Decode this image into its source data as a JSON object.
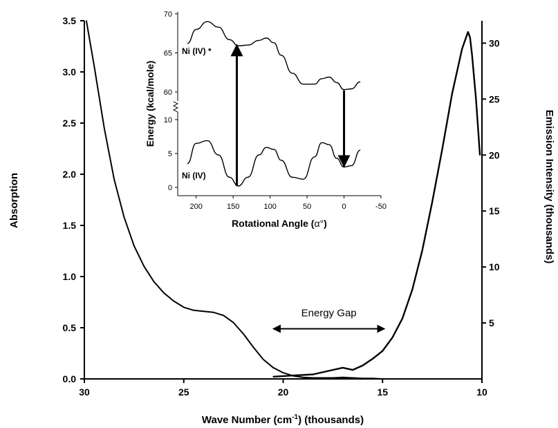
{
  "chart_data": [
    {
      "type": "line",
      "xlabel_main": "Wave Number (cm",
      "xlabel_sup": "-1",
      "xlabel_tail": ") (thousands)",
      "ylabel_left": "Absorption",
      "ylabel_right": "Emission Intensity (thousands)",
      "xlim": [
        30,
        10
      ],
      "ylim_left": [
        0,
        3.5
      ],
      "ylim_right": [
        0,
        32
      ],
      "x_ticks": [
        "30",
        "25",
        "20",
        "15",
        "10"
      ],
      "y_left_ticks": [
        "0.0",
        "0.5",
        "1.0",
        "1.5",
        "2.0",
        "2.5",
        "3.0",
        "3.5"
      ],
      "y_right_ticks": [
        "5",
        "10",
        "15",
        "20",
        "25",
        "30"
      ],
      "grid": false,
      "series": [
        {
          "axis": "left",
          "x": [
            29.9,
            29.5,
            29.0,
            28.5,
            28.0,
            27.5,
            27.0,
            26.5,
            26.0,
            25.5,
            25.0,
            24.5,
            24.0,
            23.5,
            23.0,
            22.5,
            22.0,
            21.5,
            21.0,
            20.5,
            20.0,
            19.5,
            19.0,
            18.5,
            18.0,
            17.5,
            17.0,
            16.5,
            16.0,
            15.5,
            15.0
          ],
          "values": [
            3.5,
            3.05,
            2.45,
            1.95,
            1.58,
            1.3,
            1.1,
            0.95,
            0.84,
            0.76,
            0.7,
            0.67,
            0.66,
            0.65,
            0.62,
            0.55,
            0.44,
            0.31,
            0.19,
            0.11,
            0.06,
            0.03,
            0.015,
            0.01,
            0.01,
            0.01,
            0.015,
            0.01,
            0.005,
            0.005,
            0.0
          ]
        },
        {
          "axis": "right",
          "x": [
            20.5,
            19.5,
            18.5,
            17.5,
            17.0,
            16.5,
            16.0,
            15.5,
            15.0,
            14.5,
            14.0,
            13.5,
            13.0,
            12.5,
            12.0,
            11.5,
            11.0,
            10.8,
            10.7,
            10.6,
            10.5,
            10.3,
            10.1
          ],
          "values": [
            0.2,
            0.3,
            0.4,
            0.8,
            1.0,
            0.8,
            1.2,
            1.8,
            2.5,
            3.7,
            5.4,
            8.0,
            11.5,
            15.8,
            20.5,
            25.5,
            29.5,
            30.5,
            31.0,
            30.5,
            29.0,
            25.0,
            20.0
          ]
        }
      ],
      "annotations": [
        {
          "text": "Energy Gap",
          "from_x": 20.5,
          "to_x": 14.9,
          "y": 0.49
        }
      ]
    },
    {
      "type": "line",
      "xlabel_main": "Rotational Angle (",
      "xlabel_symbol": "α°",
      "xlabel_tail": ")",
      "ylabel": "Energy (kcal/mole)",
      "xlim": [
        225,
        -50
      ],
      "x_ticks": [
        "200",
        "150",
        "100",
        "50",
        "0",
        "-50"
      ],
      "y_ticks_upper": [
        "70",
        "65",
        "60"
      ],
      "y_ticks_lower": [
        "10",
        "5",
        "0"
      ],
      "y_axis_break": true,
      "series": [
        {
          "name": "Ni (IV) *",
          "x": [
            212,
            200,
            185,
            170,
            155,
            143,
            130,
            115,
            105,
            95,
            85,
            70,
            55,
            40,
            30,
            20,
            10,
            0,
            -10,
            -22
          ],
          "values": [
            66.2,
            68.0,
            69.0,
            68.3,
            66.7,
            65.9,
            66.0,
            66.6,
            66.9,
            66.3,
            64.7,
            62.4,
            61.0,
            61.0,
            61.7,
            61.9,
            61.2,
            60.3,
            60.4,
            61.3
          ]
        },
        {
          "name": "Ni (IV)",
          "x": [
            212,
            200,
            185,
            170,
            155,
            143,
            130,
            115,
            105,
            95,
            85,
            70,
            55,
            40,
            30,
            20,
            10,
            0,
            -10,
            -22
          ],
          "values": [
            3.5,
            6.5,
            6.9,
            4.8,
            1.5,
            0.2,
            1.5,
            4.8,
            5.9,
            5.6,
            4.0,
            1.5,
            1.2,
            4.5,
            6.6,
            6.3,
            4.3,
            3.0,
            3.2,
            5.5
          ]
        }
      ],
      "arrows": [
        {
          "direction": "up",
          "x": 145,
          "from_y": 0.2,
          "to_y": 66.0
        },
        {
          "direction": "down",
          "x": 0,
          "from_y": 60.2,
          "to_y": 3.1
        }
      ]
    }
  ]
}
